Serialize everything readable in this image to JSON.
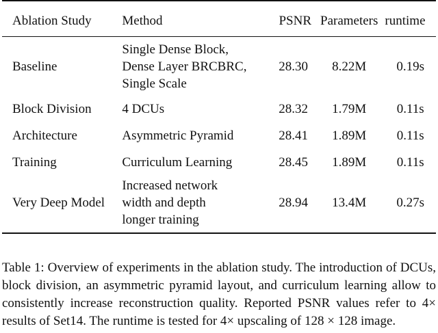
{
  "table": {
    "headers": {
      "study": "Ablation Study",
      "method": "Method",
      "psnr": "PSNR",
      "parameters": "Parameters",
      "runtime": "runtime"
    },
    "rows": [
      {
        "study": "Baseline",
        "method_lines": [
          "Single Dense Block,",
          "Dense Layer BRCBRC,",
          "Single Scale"
        ],
        "psnr": "28.30",
        "parameters": "8.22M",
        "runtime": "0.19s"
      },
      {
        "study": "Block Division",
        "method_lines": [
          "4 DCUs"
        ],
        "psnr": "28.32",
        "parameters": "1.79M",
        "runtime": "0.11s"
      },
      {
        "study": "Architecture",
        "method_lines": [
          "Asymmetric Pyramid"
        ],
        "psnr": "28.41",
        "parameters": "1.89M",
        "runtime": "0.11s"
      },
      {
        "study": "Training",
        "method_lines": [
          "Curriculum Learning"
        ],
        "psnr": "28.45",
        "parameters": "1.89M",
        "runtime": "0.11s"
      },
      {
        "study": "Very Deep Model",
        "method_lines": [
          "Increased network",
          "width and depth",
          "longer training"
        ],
        "psnr": "28.94",
        "parameters": "13.4M",
        "runtime": "0.27s"
      }
    ]
  },
  "caption": "Table 1: Overview of experiments in the ablation study. The introduction of DCUs, block division, an asymmetric pyramid layout, and curriculum learning allow to consistently increase reconstruction quality. Reported PSNR values refer to 4× results of Set14. The runtime is tested for 4× upscaling of 128 × 128 image."
}
